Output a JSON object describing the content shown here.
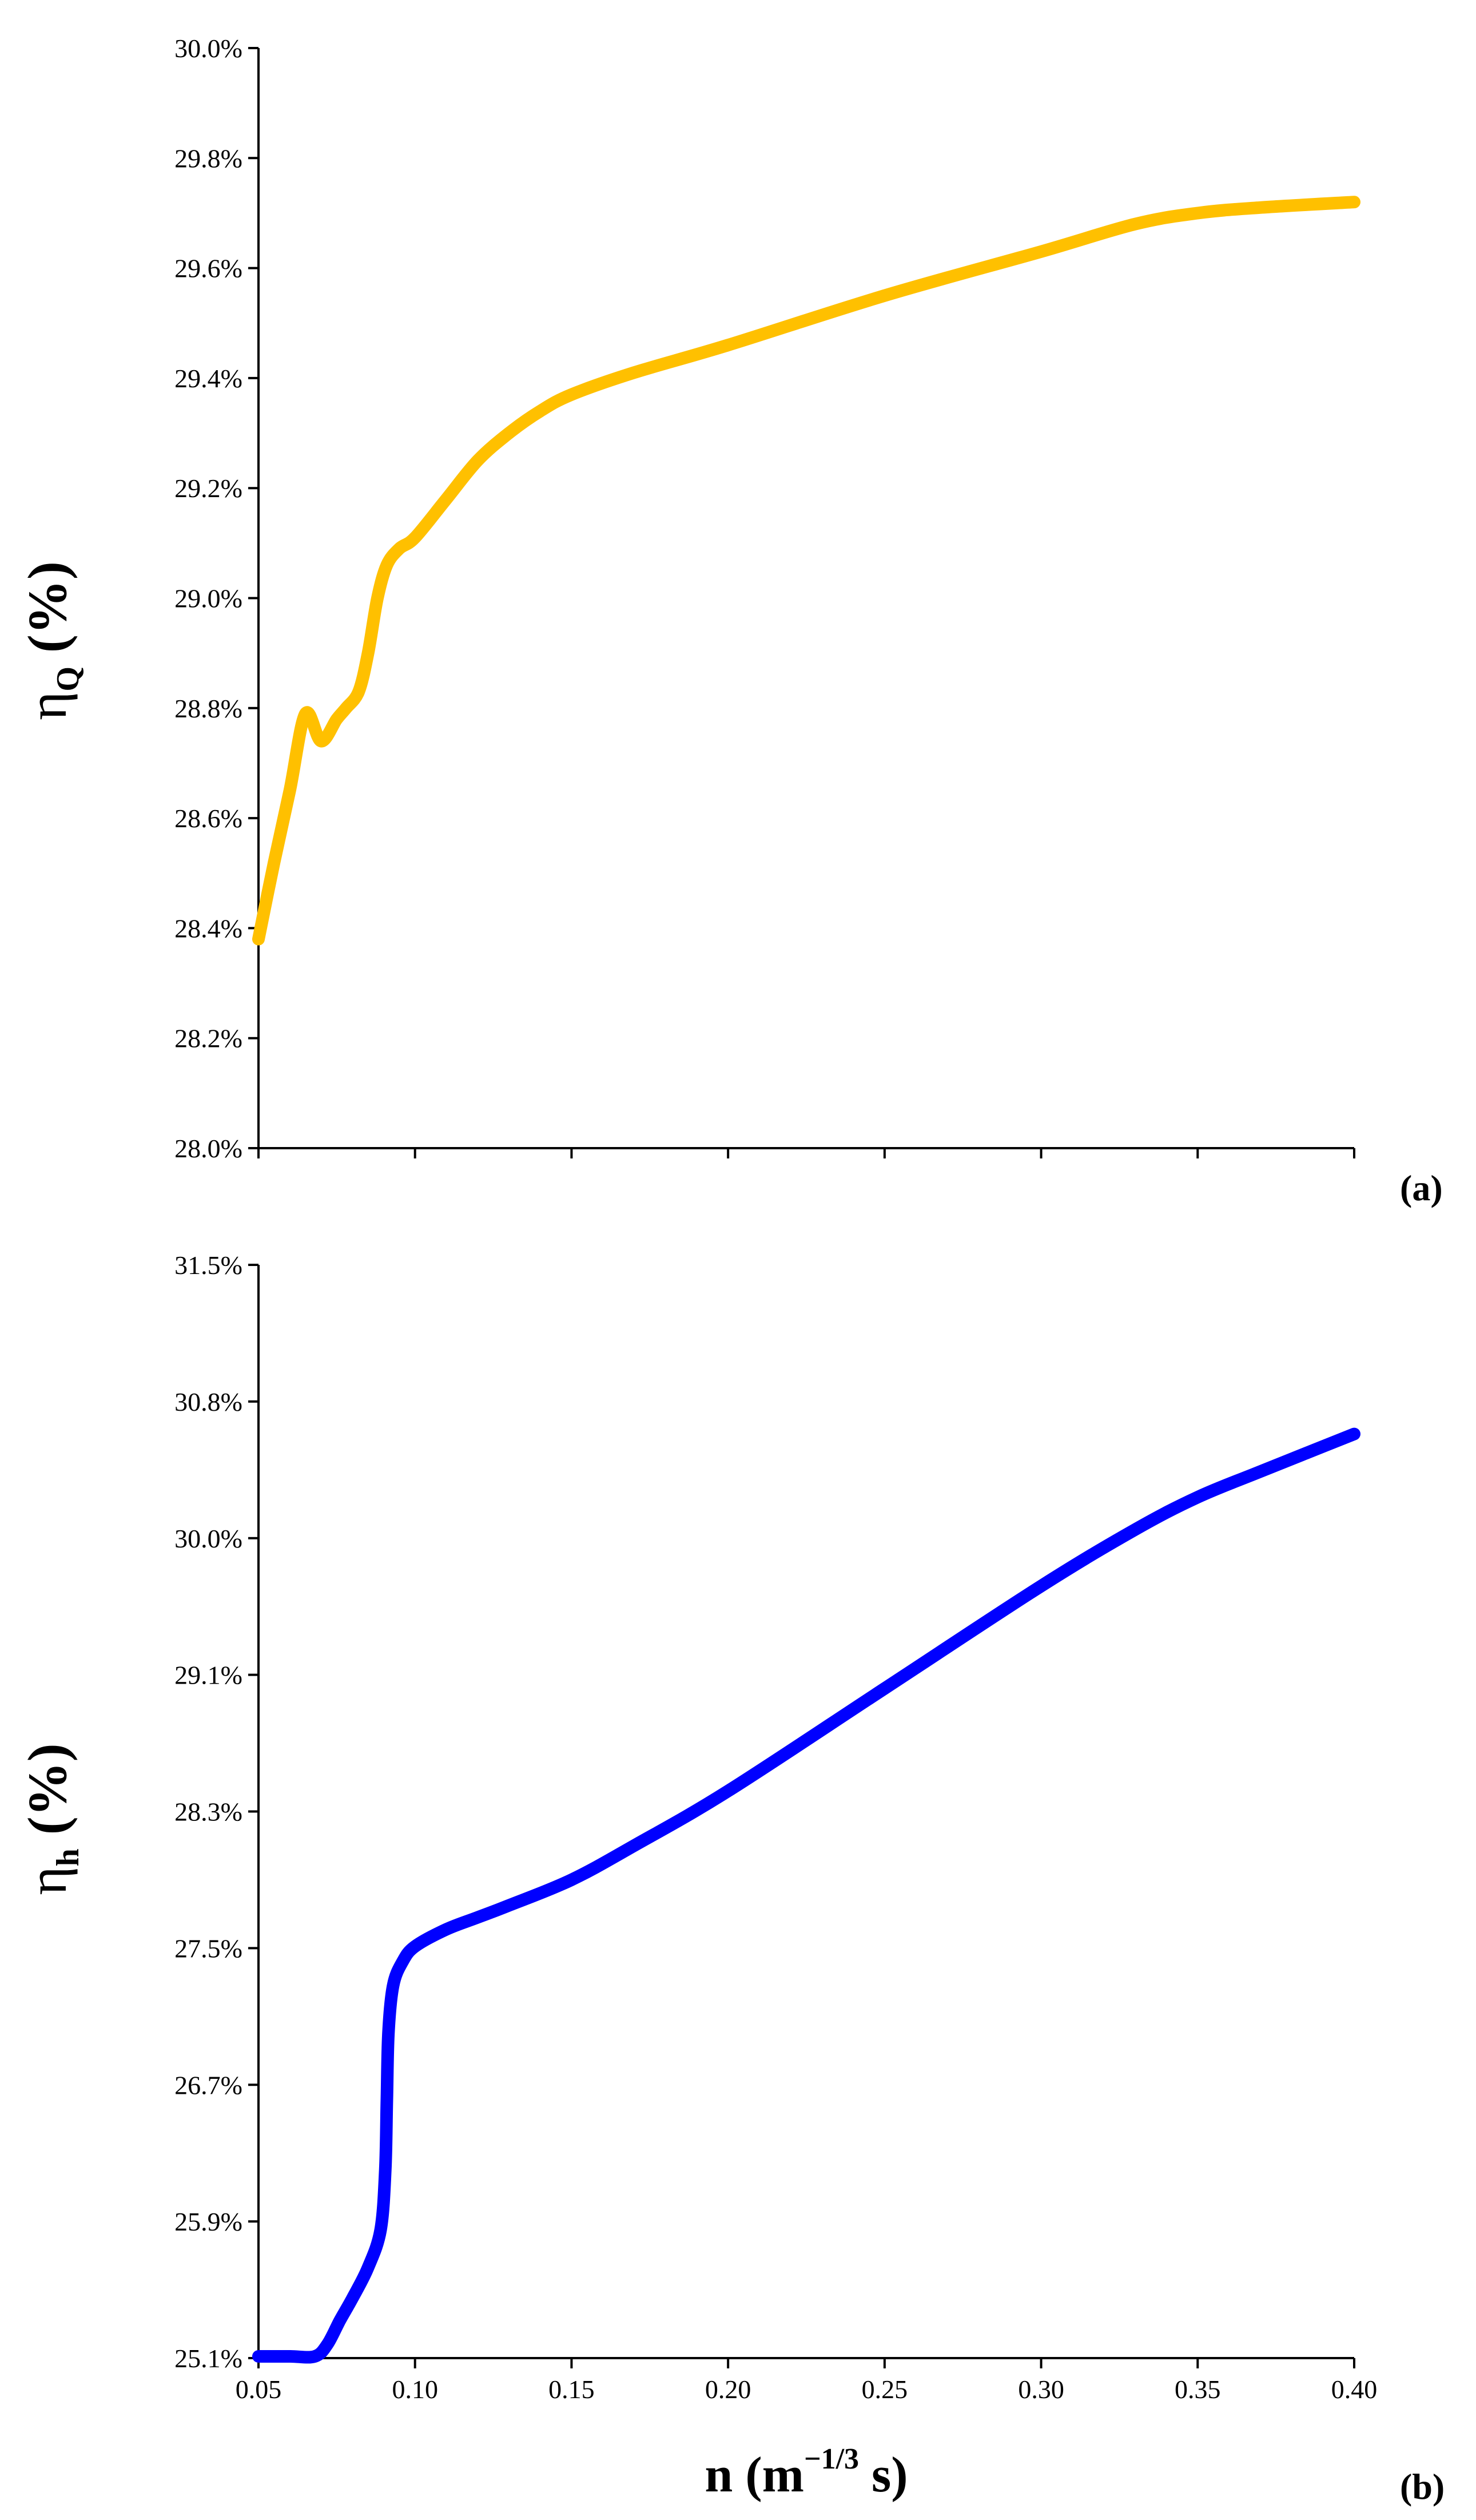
{
  "chart_data": [
    {
      "type": "line",
      "panel_label": "(a)",
      "ylabel": {
        "symbol": "η",
        "subscript": "Q",
        "unit": " (%)"
      },
      "xlabel": "",
      "ylim": [
        0.28,
        0.3
      ],
      "xlim": [
        0.05,
        0.4
      ],
      "yticks": [
        "28.0%",
        "28.2%",
        "28.4%",
        "28.6%",
        "28.8%",
        "29.0%",
        "29.2%",
        "29.4%",
        "29.6%",
        "29.8%",
        "30.0%"
      ],
      "xtick_marks": [
        0.05,
        0.1,
        0.15,
        0.2,
        0.25,
        0.3,
        0.35,
        0.4
      ],
      "grid": false,
      "series": [
        {
          "color": "#FFC000",
          "x": [
            0.05,
            0.055,
            0.06,
            0.065,
            0.07,
            0.075,
            0.078,
            0.082,
            0.085,
            0.088,
            0.091,
            0.095,
            0.1,
            0.11,
            0.12,
            0.13,
            0.14,
            0.15,
            0.17,
            0.2,
            0.25,
            0.3,
            0.33,
            0.35,
            0.37,
            0.4
          ],
          "y": [
            0.2838,
            0.2852,
            0.2865,
            0.2879,
            0.2874,
            0.2878,
            0.288,
            0.2883,
            0.289,
            0.29,
            0.2906,
            0.2909,
            0.2911,
            0.2918,
            0.2925,
            0.293,
            0.2934,
            0.2937,
            0.2941,
            0.2946,
            0.2955,
            0.2963,
            0.2968,
            0.297,
            0.2971,
            0.2972
          ]
        }
      ]
    },
    {
      "type": "line",
      "panel_label": "(b)",
      "ylabel": {
        "symbol": "η",
        "subscript": "h",
        "unit": " (%)"
      },
      "xlabel": {
        "main": "n (m",
        "sup": "−1/3",
        "tail": " s)"
      },
      "ylim": [
        0.251,
        0.315
      ],
      "xlim": [
        0.05,
        0.4
      ],
      "yticks": [
        "25.1%",
        "25.9%",
        "26.7%",
        "27.5%",
        "28.3%",
        "29.1%",
        "30.0%",
        "30.8%",
        "31.5%"
      ],
      "xticks": [
        "0.05",
        "0.10",
        "0.15",
        "0.20",
        "0.25",
        "0.30",
        "0.35",
        "0.40"
      ],
      "xtick_marks": [
        0.05,
        0.1,
        0.15,
        0.2,
        0.25,
        0.3,
        0.35,
        0.4
      ],
      "grid": false,
      "series": [
        {
          "color": "#0000FF",
          "x": [
            0.05,
            0.06,
            0.068,
            0.072,
            0.076,
            0.08,
            0.085,
            0.089,
            0.0905,
            0.091,
            0.0915,
            0.093,
            0.096,
            0.1,
            0.11,
            0.12,
            0.13,
            0.15,
            0.17,
            0.2,
            0.25,
            0.3,
            0.33,
            0.35,
            0.37,
            0.4
          ],
          "y": [
            0.2511,
            0.2511,
            0.2511,
            0.2518,
            0.2532,
            0.2545,
            0.2563,
            0.2585,
            0.262,
            0.266,
            0.27,
            0.2728,
            0.2742,
            0.2751,
            0.2761,
            0.2768,
            0.2775,
            0.279,
            0.281,
            0.2842,
            0.2902,
            0.2962,
            0.2995,
            0.3014,
            0.3029,
            0.3051
          ]
        }
      ]
    }
  ]
}
